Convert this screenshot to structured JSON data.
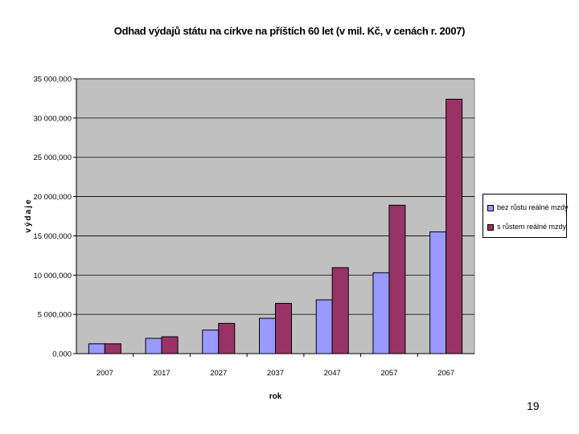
{
  "page_number": "19",
  "chart_data": {
    "type": "bar",
    "title": "Odhad výdajů státu na církve na příštích 60 let (v mil. Kč, v cenách r. 2007)",
    "xlabel": "rok",
    "ylabel": "výdaje",
    "categories": [
      "2007",
      "2017",
      "2027",
      "2037",
      "2047",
      "2057",
      "2067"
    ],
    "series": [
      {
        "name": "bez růstu reálné mzdy",
        "color": "#9999ff",
        "values": [
          1250,
          1950,
          3000,
          4500,
          6850,
          10300,
          15500
        ]
      },
      {
        "name": "s růstem reálné mzdy",
        "color": "#993366",
        "values": [
          1250,
          2150,
          3850,
          6400,
          10950,
          18900,
          32400
        ]
      }
    ],
    "ylim": [
      0,
      35000
    ],
    "yticks": [
      0,
      5000,
      10000,
      15000,
      20000,
      25000,
      30000,
      35000
    ],
    "ytick_labels": [
      "0,000",
      "5 000,000",
      "10 000,000",
      "15 000,000",
      "20 000,000",
      "25 000,000",
      "30 000,000",
      "35 000,000"
    ],
    "plot_background": "#c0c0c0",
    "grid": true,
    "legend_position": "right"
  }
}
